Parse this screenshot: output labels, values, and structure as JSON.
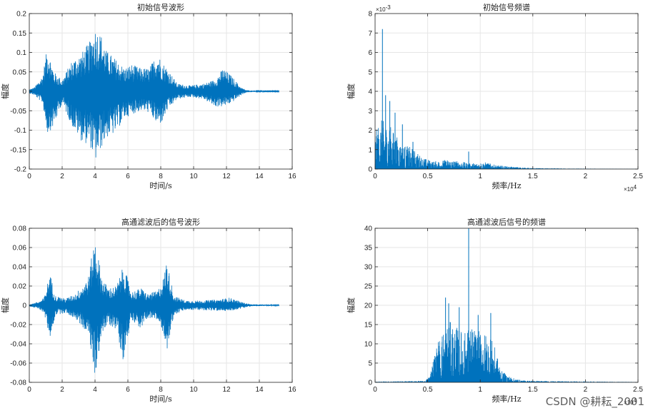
{
  "watermark": "CSDN @耕耘_2001",
  "chart_data": [
    {
      "id": "tl",
      "type": "line",
      "title": "初始信号波形",
      "xlabel": "时间/s",
      "ylabel": "幅度",
      "xlim": [
        0,
        16
      ],
      "ylim": [
        -0.2,
        0.2
      ],
      "xticks": [
        0,
        2,
        4,
        6,
        8,
        10,
        12,
        14,
        16
      ],
      "yticks": [
        -0.2,
        -0.15,
        -0.1,
        -0.05,
        0,
        0.05,
        0.1,
        0.15,
        0.2
      ],
      "grid": true,
      "color": "#0072BD",
      "envelope": {
        "x": [
          0,
          0.3,
          0.8,
          1.1,
          1.5,
          2.0,
          2.6,
          3.2,
          3.7,
          4.0,
          4.4,
          4.7,
          5.2,
          5.8,
          6.2,
          6.8,
          7.3,
          7.8,
          8.1,
          8.4,
          9.0,
          9.8,
          10.6,
          11.3,
          11.8,
          12.3,
          12.9,
          13.2,
          14.0,
          15.2
        ],
        "ymax": [
          0.005,
          0.01,
          0.04,
          0.115,
          0.05,
          0.03,
          0.08,
          0.1,
          0.13,
          0.165,
          0.145,
          0.105,
          0.085,
          0.06,
          0.07,
          0.06,
          0.06,
          0.1,
          0.075,
          0.06,
          0.02,
          0.015,
          0.02,
          0.03,
          0.06,
          0.04,
          0.01,
          0.003,
          0.001,
          0.001
        ],
        "ymin": [
          -0.005,
          -0.01,
          -0.03,
          -0.11,
          -0.09,
          -0.03,
          -0.09,
          -0.13,
          -0.14,
          -0.185,
          -0.145,
          -0.12,
          -0.11,
          -0.07,
          -0.06,
          -0.05,
          -0.055,
          -0.09,
          -0.08,
          -0.05,
          -0.02,
          -0.015,
          -0.02,
          -0.04,
          -0.04,
          -0.03,
          -0.01,
          -0.003,
          -0.001,
          -0.001
        ]
      }
    },
    {
      "id": "tr",
      "type": "line",
      "title": "初始信号频谱",
      "xlabel": "频率/Hz",
      "ylabel": "幅度",
      "xlim": [
        0,
        25000
      ],
      "ylim": [
        0,
        0.008
      ],
      "xticks": [
        0,
        5000,
        10000,
        15000,
        20000,
        25000
      ],
      "xticklabels": [
        "0",
        "0.5",
        "1",
        "1.5",
        "2",
        "2.5"
      ],
      "xexp": "×10",
      "xexp_power": "4",
      "yticks": [
        0,
        0.001,
        0.002,
        0.003,
        0.004,
        0.005,
        0.006,
        0.007,
        0.008
      ],
      "yticklabels": [
        "0",
        "1",
        "2",
        "3",
        "4",
        "5",
        "6",
        "7",
        "8"
      ],
      "yexp": "×10",
      "yexp_power": "-3",
      "grid": true,
      "color": "#0072BD",
      "envelope": {
        "x": [
          0,
          500,
          1500,
          2500,
          3500,
          4500,
          5500,
          7000,
          9000,
          10500,
          11500,
          13000,
          15000,
          18000,
          25000
        ],
        "ymax": [
          0.0018,
          0.0026,
          0.0022,
          0.0013,
          0.0011,
          0.0006,
          0.0004,
          0.0005,
          0.0003,
          0.00035,
          0.0002,
          0.00012,
          5e-05,
          3e-05,
          1e-05
        ]
      },
      "peaks": [
        {
          "x": 700,
          "y": 0.0072
        },
        {
          "x": 1000,
          "y": 0.0038
        },
        {
          "x": 1400,
          "y": 0.0035
        },
        {
          "x": 1900,
          "y": 0.0029
        },
        {
          "x": 2600,
          "y": 0.0023
        },
        {
          "x": 3600,
          "y": 0.0014
        },
        {
          "x": 8900,
          "y": 0.0009
        }
      ]
    },
    {
      "id": "bl",
      "type": "line",
      "title": "高通滤波后的信号波形",
      "xlabel": "时间/s",
      "ylabel": "幅度",
      "xlim": [
        0,
        16
      ],
      "ylim": [
        -0.08,
        0.08
      ],
      "xticks": [
        0,
        2,
        4,
        6,
        8,
        10,
        12,
        14,
        16
      ],
      "yticks": [
        -0.08,
        -0.06,
        -0.04,
        -0.02,
        0,
        0.02,
        0.04,
        0.06,
        0.08
      ],
      "grid": true,
      "color": "#0072BD",
      "envelope": {
        "x": [
          0,
          0.6,
          0.9,
          1.25,
          1.6,
          2.2,
          2.8,
          3.2,
          3.6,
          4.0,
          4.4,
          4.8,
          5.3,
          5.75,
          6.2,
          6.8,
          7.2,
          7.8,
          8.2,
          8.35,
          8.8,
          9.5,
          10.5,
          11.5,
          12.2,
          13.0,
          13.5,
          15.2
        ],
        "ymax": [
          0.001,
          0.004,
          0.008,
          0.034,
          0.01,
          0.007,
          0.012,
          0.02,
          0.03,
          0.072,
          0.03,
          0.018,
          0.02,
          0.042,
          0.014,
          0.018,
          0.012,
          0.015,
          0.03,
          0.048,
          0.01,
          0.005,
          0.005,
          0.006,
          0.008,
          0.003,
          0.001,
          0.0005
        ],
        "ymin": [
          -0.001,
          -0.004,
          -0.008,
          -0.035,
          -0.01,
          -0.008,
          -0.014,
          -0.022,
          -0.03,
          -0.075,
          -0.03,
          -0.02,
          -0.025,
          -0.06,
          -0.014,
          -0.025,
          -0.013,
          -0.016,
          -0.03,
          -0.05,
          -0.01,
          -0.005,
          -0.005,
          -0.006,
          -0.006,
          -0.003,
          -0.001,
          -0.0005
        ]
      }
    },
    {
      "id": "br",
      "type": "line",
      "title": "高通滤波后信号的频谱",
      "xlabel": "频率/Hz",
      "ylabel": "幅度",
      "xlim": [
        0,
        25000
      ],
      "ylim": [
        0,
        40
      ],
      "xticks": [
        0,
        5000,
        10000,
        15000,
        20000,
        25000
      ],
      "xticklabels": [
        "0",
        "0.5",
        "1",
        "1.5",
        "2",
        "2.5"
      ],
      "xexp": "×10",
      "xexp_power": "4",
      "yticks": [
        0,
        5,
        10,
        15,
        20,
        25,
        30,
        35,
        40
      ],
      "grid": true,
      "color": "#0072BD",
      "envelope": {
        "x": [
          0,
          4800,
          5200,
          5500,
          6000,
          6500,
          7000,
          7500,
          8000,
          8500,
          9000,
          9500,
          10000,
          10500,
          11000,
          11500,
          12000,
          13000,
          14000,
          17000,
          25000
        ],
        "ymax": [
          0.2,
          0.4,
          2,
          6,
          11,
          14,
          16,
          15,
          14,
          13,
          15,
          14,
          13,
          13,
          12,
          8,
          3,
          1.2,
          0.5,
          0.3,
          0.1
        ]
      },
      "peaks": [
        {
          "x": 6700,
          "y": 22
        },
        {
          "x": 7000,
          "y": 20.5
        },
        {
          "x": 8000,
          "y": 19.5
        },
        {
          "x": 8900,
          "y": 40
        },
        {
          "x": 11000,
          "y": 18
        },
        {
          "x": 9800,
          "y": 17.5
        }
      ]
    }
  ]
}
